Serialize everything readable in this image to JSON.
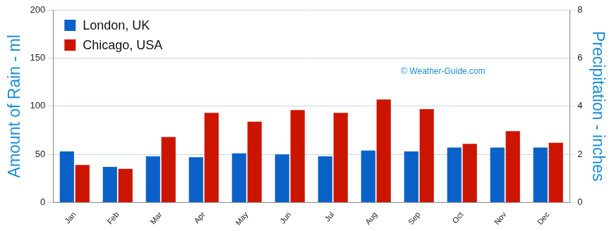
{
  "chart_data": {
    "type": "bar",
    "categories": [
      "Jan",
      "Feb",
      "Mar",
      "Apr",
      "May",
      "Jun",
      "Jul",
      "Aug",
      "Sep",
      "Oct",
      "Nov",
      "Dec"
    ],
    "series": [
      {
        "name": "London, UK",
        "color": "#0a62c8",
        "values": [
          53,
          37,
          48,
          47,
          51,
          50,
          48,
          54,
          53,
          57,
          57,
          57
        ]
      },
      {
        "name": "Chicago, USA",
        "color": "#cc1500",
        "values": [
          39,
          35,
          68,
          93,
          84,
          96,
          93,
          107,
          97,
          61,
          74,
          62
        ]
      }
    ],
    "y_label": "Amount of Rain - ml",
    "y2_label": "Precipitation - inches",
    "ylim": [
      0,
      200
    ],
    "yticks": [
      0,
      50,
      100,
      150,
      200
    ],
    "y2lim": [
      0,
      8
    ],
    "y2ticks": [
      0,
      2,
      4,
      6,
      8
    ],
    "annotations": [
      "© Weather-Guide.com"
    ],
    "grid": true,
    "legend": "upper left"
  }
}
